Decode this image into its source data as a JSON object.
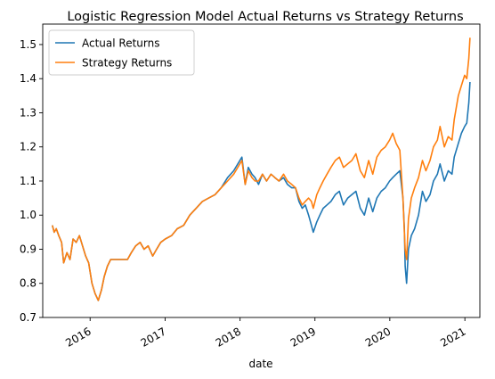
{
  "chart_data": {
    "type": "line",
    "title": "Logistic Regression Model Actual Returns vs Strategy Returns",
    "xlabel": "date",
    "ylabel": "",
    "xlim": [
      "2015-05-15",
      "2021-03-15"
    ],
    "ylim": [
      0.7,
      1.56
    ],
    "y_ticks": [
      0.7,
      0.8,
      0.9,
      1.0,
      1.1,
      1.2,
      1.3,
      1.4,
      1.5
    ],
    "y_tick_labels": [
      "0.7",
      "0.8",
      "0.9",
      "1.0",
      "1.1",
      "1.2",
      "1.3",
      "1.4",
      "1.5"
    ],
    "x_ticks": [
      "2016-01-01",
      "2017-01-01",
      "2018-01-01",
      "2019-01-01",
      "2020-01-01",
      "2021-01-01"
    ],
    "x_tick_labels": [
      "2016",
      "2017",
      "2018",
      "2019",
      "2020",
      "2021"
    ],
    "grid": false,
    "legend_position": "top-left",
    "colors": {
      "actual": "#1f77b4",
      "strategy": "#ff7f0e"
    },
    "series": [
      {
        "name": "Actual Returns",
        "x": [
          "2015-07-01",
          "2015-07-10",
          "2015-07-20",
          "2015-08-01",
          "2015-08-15",
          "2015-08-25",
          "2015-09-10",
          "2015-09-25",
          "2015-10-10",
          "2015-10-25",
          "2015-11-10",
          "2015-11-25",
          "2015-12-10",
          "2015-12-25",
          "2016-01-10",
          "2016-01-25",
          "2016-02-10",
          "2016-02-25",
          "2016-03-10",
          "2016-03-25",
          "2016-04-10",
          "2016-05-01",
          "2016-06-01",
          "2016-07-01",
          "2016-07-20",
          "2016-08-10",
          "2016-09-01",
          "2016-09-20",
          "2016-10-10",
          "2016-11-01",
          "2016-11-20",
          "2016-12-10",
          "2017-01-01",
          "2017-02-01",
          "2017-03-01",
          "2017-04-01",
          "2017-05-01",
          "2017-06-01",
          "2017-07-01",
          "2017-08-01",
          "2017-09-01",
          "2017-10-01",
          "2017-11-01",
          "2017-12-01",
          "2018-01-10",
          "2018-01-26",
          "2018-02-10",
          "2018-02-28",
          "2018-03-15",
          "2018-04-01",
          "2018-04-20",
          "2018-05-10",
          "2018-06-01",
          "2018-06-20",
          "2018-07-10",
          "2018-08-01",
          "2018-08-20",
          "2018-09-10",
          "2018-09-28",
          "2018-10-15",
          "2018-10-31",
          "2018-11-15",
          "2018-12-01",
          "2018-12-15",
          "2018-12-24",
          "2019-01-10",
          "2019-01-25",
          "2019-02-10",
          "2019-03-01",
          "2019-03-20",
          "2019-04-10",
          "2019-04-30",
          "2019-05-20",
          "2019-06-10",
          "2019-06-30",
          "2019-07-20",
          "2019-08-10",
          "2019-08-30",
          "2019-09-20",
          "2019-10-10",
          "2019-10-30",
          "2019-11-20",
          "2019-12-10",
          "2019-12-31",
          "2020-01-15",
          "2020-02-01",
          "2020-02-19",
          "2020-03-05",
          "2020-03-12",
          "2020-03-16",
          "2020-03-23",
          "2020-04-01",
          "2020-04-15",
          "2020-05-01",
          "2020-05-20",
          "2020-06-08",
          "2020-06-25",
          "2020-07-15",
          "2020-08-01",
          "2020-08-20",
          "2020-09-02",
          "2020-09-23",
          "2020-10-12",
          "2020-10-30",
          "2020-11-10",
          "2020-11-30",
          "2020-12-15",
          "2020-12-31",
          "2021-01-10",
          "2021-01-20",
          "2021-01-26"
        ],
        "y": [
          0.97,
          0.95,
          0.96,
          0.94,
          0.92,
          0.86,
          0.89,
          0.87,
          0.93,
          0.92,
          0.94,
          0.91,
          0.88,
          0.86,
          0.8,
          0.77,
          0.75,
          0.78,
          0.82,
          0.85,
          0.87,
          0.87,
          0.87,
          0.87,
          0.89,
          0.91,
          0.92,
          0.9,
          0.91,
          0.88,
          0.9,
          0.92,
          0.93,
          0.94,
          0.96,
          0.97,
          1.0,
          1.02,
          1.04,
          1.05,
          1.06,
          1.08,
          1.11,
          1.13,
          1.17,
          1.09,
          1.14,
          1.12,
          1.11,
          1.09,
          1.12,
          1.1,
          1.12,
          1.11,
          1.1,
          1.11,
          1.09,
          1.08,
          1.08,
          1.04,
          1.02,
          1.03,
          1.0,
          0.97,
          0.95,
          0.98,
          1.0,
          1.02,
          1.03,
          1.04,
          1.06,
          1.07,
          1.03,
          1.05,
          1.06,
          1.07,
          1.02,
          1.0,
          1.05,
          1.01,
          1.05,
          1.07,
          1.08,
          1.1,
          1.11,
          1.12,
          1.13,
          1.05,
          0.96,
          0.85,
          0.8,
          0.9,
          0.94,
          0.96,
          1.0,
          1.07,
          1.04,
          1.06,
          1.1,
          1.12,
          1.15,
          1.1,
          1.13,
          1.12,
          1.17,
          1.21,
          1.24,
          1.26,
          1.27,
          1.33,
          1.39
        ]
      },
      {
        "name": "Strategy Returns",
        "x": [
          "2015-07-01",
          "2015-07-10",
          "2015-07-20",
          "2015-08-01",
          "2015-08-15",
          "2015-08-25",
          "2015-09-10",
          "2015-09-25",
          "2015-10-10",
          "2015-10-25",
          "2015-11-10",
          "2015-11-25",
          "2015-12-10",
          "2015-12-25",
          "2016-01-10",
          "2016-01-25",
          "2016-02-10",
          "2016-02-25",
          "2016-03-10",
          "2016-03-25",
          "2016-04-10",
          "2016-05-01",
          "2016-06-01",
          "2016-07-01",
          "2016-07-20",
          "2016-08-10",
          "2016-09-01",
          "2016-09-20",
          "2016-10-10",
          "2016-11-01",
          "2016-11-20",
          "2016-12-10",
          "2017-01-01",
          "2017-02-01",
          "2017-03-01",
          "2017-04-01",
          "2017-05-01",
          "2017-06-01",
          "2017-07-01",
          "2017-08-01",
          "2017-09-01",
          "2017-10-01",
          "2017-11-01",
          "2017-12-01",
          "2018-01-10",
          "2018-01-26",
          "2018-02-10",
          "2018-02-28",
          "2018-03-15",
          "2018-04-01",
          "2018-04-20",
          "2018-05-10",
          "2018-06-01",
          "2018-06-20",
          "2018-07-10",
          "2018-08-01",
          "2018-08-20",
          "2018-09-10",
          "2018-09-28",
          "2018-10-15",
          "2018-10-31",
          "2018-11-15",
          "2018-12-01",
          "2018-12-15",
          "2018-12-24",
          "2019-01-10",
          "2019-01-25",
          "2019-02-10",
          "2019-03-01",
          "2019-03-20",
          "2019-04-10",
          "2019-04-30",
          "2019-05-20",
          "2019-06-10",
          "2019-06-30",
          "2019-07-20",
          "2019-08-10",
          "2019-08-30",
          "2019-09-20",
          "2019-10-10",
          "2019-10-30",
          "2019-11-20",
          "2019-12-10",
          "2019-12-31",
          "2020-01-15",
          "2020-02-01",
          "2020-02-19",
          "2020-03-05",
          "2020-03-12",
          "2020-03-16",
          "2020-03-23",
          "2020-04-01",
          "2020-04-15",
          "2020-05-01",
          "2020-05-20",
          "2020-06-08",
          "2020-06-25",
          "2020-07-15",
          "2020-08-01",
          "2020-08-20",
          "2020-09-02",
          "2020-09-23",
          "2020-10-12",
          "2020-10-30",
          "2020-11-10",
          "2020-11-30",
          "2020-12-15",
          "2020-12-31",
          "2021-01-10",
          "2021-01-20",
          "2021-01-26"
        ],
        "y": [
          0.97,
          0.95,
          0.96,
          0.94,
          0.92,
          0.86,
          0.89,
          0.87,
          0.93,
          0.92,
          0.94,
          0.91,
          0.88,
          0.86,
          0.8,
          0.77,
          0.75,
          0.78,
          0.82,
          0.85,
          0.87,
          0.87,
          0.87,
          0.87,
          0.89,
          0.91,
          0.92,
          0.9,
          0.91,
          0.88,
          0.9,
          0.92,
          0.93,
          0.94,
          0.96,
          0.97,
          1.0,
          1.02,
          1.04,
          1.05,
          1.06,
          1.08,
          1.1,
          1.12,
          1.16,
          1.09,
          1.13,
          1.11,
          1.1,
          1.1,
          1.12,
          1.1,
          1.12,
          1.11,
          1.1,
          1.12,
          1.1,
          1.09,
          1.08,
          1.05,
          1.03,
          1.04,
          1.05,
          1.04,
          1.02,
          1.06,
          1.08,
          1.1,
          1.12,
          1.14,
          1.16,
          1.17,
          1.14,
          1.15,
          1.16,
          1.18,
          1.13,
          1.11,
          1.16,
          1.12,
          1.17,
          1.19,
          1.2,
          1.22,
          1.24,
          1.21,
          1.19,
          1.05,
          0.95,
          0.9,
          0.87,
          0.99,
          1.05,
          1.08,
          1.11,
          1.16,
          1.13,
          1.16,
          1.2,
          1.22,
          1.26,
          1.2,
          1.23,
          1.22,
          1.28,
          1.35,
          1.38,
          1.41,
          1.4,
          1.46,
          1.52
        ]
      }
    ]
  }
}
